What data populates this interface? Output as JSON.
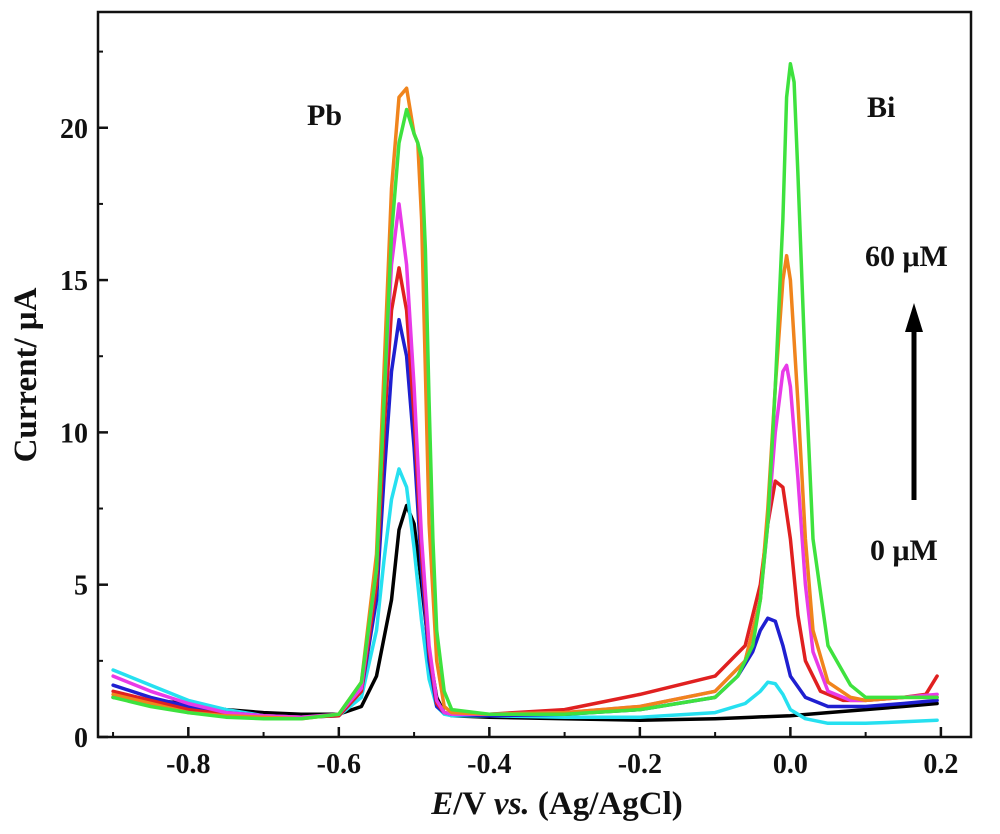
{
  "chart_data": {
    "type": "line",
    "xlabel": {
      "italic": "E",
      "rest": "/V ",
      "italic2": "vs.",
      "rest2": " (Ag/AgCl)"
    },
    "ylabel": "Current/ μA",
    "xlim": [
      -0.92,
      0.24
    ],
    "ylim": [
      0,
      23.8
    ],
    "x_ticks": [
      -0.8,
      -0.6,
      -0.4,
      -0.2,
      0.0,
      0.2
    ],
    "x_tick_labels": [
      "-0.8",
      "-0.6",
      "-0.4",
      "-0.2",
      "0.0",
      "0.2"
    ],
    "y_ticks": [
      0,
      5,
      10,
      15,
      20
    ],
    "y_tick_labels": [
      "0",
      "5",
      "10",
      "15",
      "20"
    ],
    "grid": false,
    "annotations": {
      "pb": "Pb",
      "bi": "Bi",
      "top_conc": "60 μM",
      "bottom_conc": "0 μM"
    },
    "series": [
      {
        "color": "#000000",
        "x": [
          -0.9,
          -0.85,
          -0.8,
          -0.75,
          -0.7,
          -0.65,
          -0.6,
          -0.57,
          -0.55,
          -0.53,
          -0.52,
          -0.51,
          -0.5,
          -0.49,
          -0.48,
          -0.47,
          -0.46,
          -0.45,
          -0.4,
          -0.3,
          -0.2,
          -0.1,
          -0.05,
          0.0,
          0.05,
          0.1,
          0.15,
          0.195
        ],
        "y": [
          1.3,
          1.2,
          1.1,
          0.9,
          0.8,
          0.75,
          0.75,
          1.0,
          2.0,
          4.5,
          6.8,
          7.6,
          7.0,
          5.0,
          2.8,
          1.3,
          0.8,
          0.7,
          0.65,
          0.6,
          0.55,
          0.6,
          0.65,
          0.7,
          0.8,
          0.9,
          1.0,
          1.1
        ]
      },
      {
        "color": "#26e0f0",
        "x": [
          -0.9,
          -0.85,
          -0.8,
          -0.75,
          -0.7,
          -0.65,
          -0.6,
          -0.57,
          -0.55,
          -0.54,
          -0.53,
          -0.52,
          -0.51,
          -0.5,
          -0.49,
          -0.48,
          -0.47,
          -0.46,
          -0.45,
          -0.4,
          -0.3,
          -0.2,
          -0.1,
          -0.06,
          -0.04,
          -0.03,
          -0.02,
          -0.01,
          0.0,
          0.02,
          0.05,
          0.1,
          0.15,
          0.195
        ],
        "y": [
          2.2,
          1.7,
          1.2,
          0.9,
          0.7,
          0.65,
          0.7,
          1.3,
          3.5,
          5.8,
          7.8,
          8.8,
          8.2,
          6.2,
          3.8,
          1.9,
          1.0,
          0.75,
          0.7,
          0.7,
          0.65,
          0.65,
          0.8,
          1.1,
          1.5,
          1.8,
          1.75,
          1.4,
          0.9,
          0.6,
          0.45,
          0.45,
          0.5,
          0.55
        ]
      },
      {
        "color": "#1f1fd0",
        "x": [
          -0.9,
          -0.85,
          -0.8,
          -0.75,
          -0.7,
          -0.65,
          -0.6,
          -0.57,
          -0.55,
          -0.54,
          -0.53,
          -0.52,
          -0.51,
          -0.5,
          -0.49,
          -0.48,
          -0.47,
          -0.46,
          -0.45,
          -0.4,
          -0.3,
          -0.2,
          -0.1,
          -0.07,
          -0.05,
          -0.04,
          -0.03,
          -0.02,
          -0.01,
          0.0,
          0.02,
          0.05,
          0.1,
          0.15,
          0.195
        ],
        "y": [
          1.7,
          1.3,
          1.0,
          0.8,
          0.7,
          0.65,
          0.7,
          1.5,
          4.5,
          8.5,
          12.0,
          13.7,
          12.5,
          9.5,
          5.5,
          2.5,
          1.0,
          0.8,
          0.75,
          0.7,
          0.75,
          0.9,
          1.3,
          2.0,
          2.8,
          3.5,
          3.9,
          3.8,
          3.0,
          2.0,
          1.3,
          1.0,
          1.0,
          1.1,
          1.2
        ]
      },
      {
        "color": "#e02020",
        "x": [
          -0.9,
          -0.85,
          -0.8,
          -0.75,
          -0.7,
          -0.65,
          -0.6,
          -0.57,
          -0.55,
          -0.54,
          -0.53,
          -0.52,
          -0.51,
          -0.5,
          -0.49,
          -0.48,
          -0.47,
          -0.46,
          -0.45,
          -0.4,
          -0.3,
          -0.2,
          -0.1,
          -0.06,
          -0.04,
          -0.03,
          -0.02,
          -0.01,
          0.0,
          0.01,
          0.02,
          0.04,
          0.07,
          0.1,
          0.15,
          0.18,
          0.195
        ],
        "y": [
          1.5,
          1.2,
          0.9,
          0.75,
          0.7,
          0.65,
          0.7,
          1.5,
          5.0,
          10.0,
          14.0,
          15.4,
          14.0,
          10.5,
          6.0,
          2.8,
          1.1,
          0.8,
          0.75,
          0.75,
          0.9,
          1.4,
          2.0,
          3.0,
          5.0,
          7.0,
          8.4,
          8.2,
          6.5,
          4.0,
          2.5,
          1.5,
          1.2,
          1.2,
          1.3,
          1.4,
          2.0
        ]
      },
      {
        "color": "#e83ae8",
        "x": [
          -0.9,
          -0.85,
          -0.8,
          -0.75,
          -0.7,
          -0.65,
          -0.6,
          -0.57,
          -0.55,
          -0.54,
          -0.53,
          -0.52,
          -0.51,
          -0.5,
          -0.49,
          -0.48,
          -0.47,
          -0.46,
          -0.45,
          -0.4,
          -0.3,
          -0.2,
          -0.1,
          -0.06,
          -0.04,
          -0.03,
          -0.02,
          -0.01,
          -0.005,
          0.0,
          0.01,
          0.02,
          0.03,
          0.05,
          0.08,
          0.1,
          0.15,
          0.195
        ],
        "y": [
          2.0,
          1.5,
          1.1,
          0.8,
          0.7,
          0.65,
          0.75,
          1.6,
          5.5,
          11.0,
          15.5,
          17.5,
          15.5,
          11.5,
          6.5,
          3.0,
          1.2,
          0.8,
          0.75,
          0.75,
          0.8,
          1.0,
          1.5,
          2.5,
          4.5,
          7.0,
          10.0,
          12.0,
          12.2,
          11.5,
          8.5,
          5.0,
          2.8,
          1.5,
          1.2,
          1.2,
          1.3,
          1.4
        ]
      },
      {
        "color": "#f0841c",
        "x": [
          -0.9,
          -0.85,
          -0.8,
          -0.75,
          -0.7,
          -0.65,
          -0.6,
          -0.57,
          -0.55,
          -0.54,
          -0.53,
          -0.52,
          -0.51,
          -0.5,
          -0.495,
          -0.49,
          -0.485,
          -0.48,
          -0.47,
          -0.46,
          -0.45,
          -0.4,
          -0.3,
          -0.2,
          -0.1,
          -0.06,
          -0.04,
          -0.03,
          -0.02,
          -0.01,
          -0.005,
          0.0,
          0.01,
          0.02,
          0.03,
          0.05,
          0.08,
          0.1,
          0.15,
          0.195
        ],
        "y": [
          1.4,
          1.1,
          0.8,
          0.7,
          0.65,
          0.6,
          0.75,
          1.8,
          6.0,
          12.0,
          18.0,
          21.0,
          21.3,
          19.8,
          19.5,
          17.0,
          12.0,
          7.0,
          2.5,
          1.0,
          0.8,
          0.75,
          0.8,
          1.0,
          1.5,
          2.5,
          4.5,
          7.5,
          11.5,
          15.0,
          15.8,
          15.0,
          11.0,
          6.5,
          3.5,
          1.8,
          1.3,
          1.2,
          1.3,
          1.3
        ]
      },
      {
        "color": "#3ee23e",
        "x": [
          -0.9,
          -0.85,
          -0.8,
          -0.75,
          -0.7,
          -0.65,
          -0.6,
          -0.57,
          -0.55,
          -0.54,
          -0.53,
          -0.52,
          -0.51,
          -0.5,
          -0.495,
          -0.49,
          -0.485,
          -0.48,
          -0.475,
          -0.47,
          -0.46,
          -0.45,
          -0.4,
          -0.3,
          -0.2,
          -0.1,
          -0.07,
          -0.05,
          -0.04,
          -0.03,
          -0.02,
          -0.01,
          -0.005,
          0.0,
          0.005,
          0.01,
          0.02,
          0.03,
          0.05,
          0.08,
          0.1,
          0.15,
          0.195
        ],
        "y": [
          1.3,
          1.0,
          0.8,
          0.65,
          0.6,
          0.6,
          0.75,
          1.8,
          5.5,
          11.0,
          16.5,
          19.5,
          20.6,
          19.8,
          19.5,
          19.0,
          16.0,
          11.0,
          6.5,
          3.5,
          1.5,
          0.9,
          0.75,
          0.75,
          0.9,
          1.3,
          2.0,
          3.0,
          4.5,
          7.0,
          11.5,
          17.0,
          21.0,
          22.1,
          21.5,
          18.5,
          12.0,
          6.5,
          3.0,
          1.7,
          1.3,
          1.3,
          1.3
        ]
      }
    ]
  }
}
